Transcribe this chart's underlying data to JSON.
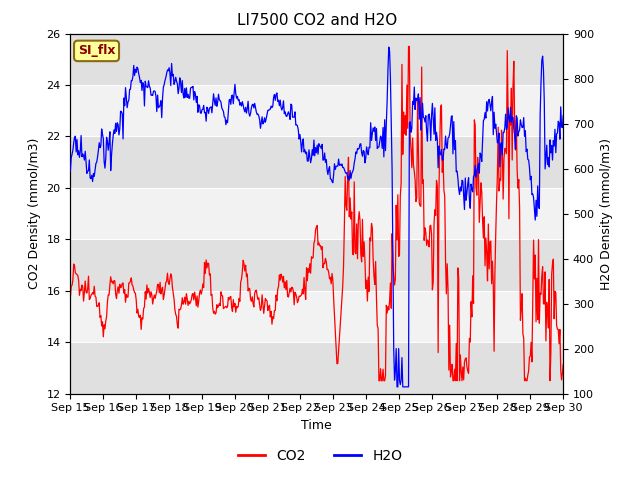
{
  "title": "LI7500 CO2 and H2O",
  "xlabel": "Time",
  "ylabel_left": "CO2 Density (mmol/m3)",
  "ylabel_right": "H2O Density (mmol/m3)",
  "ylim_left": [
    12,
    26
  ],
  "ylim_right": [
    100,
    900
  ],
  "yticks_left": [
    12,
    14,
    16,
    18,
    20,
    22,
    24,
    26
  ],
  "yticks_right": [
    100,
    200,
    300,
    400,
    500,
    600,
    700,
    800,
    900
  ],
  "x_tick_labels": [
    "Sep 15",
    "Sep 16",
    "Sep 17",
    "Sep 18",
    "Sep 19",
    "Sep 20",
    "Sep 21",
    "Sep 22",
    "Sep 23",
    "Sep 24",
    "Sep 25",
    "Sep 26",
    "Sep 27",
    "Sep 28",
    "Sep 29",
    "Sep 30"
  ],
  "co2_color": "#ff0000",
  "h2o_color": "#0000ff",
  "background_color": "#ffffff",
  "plot_bg_color": "#e8e8e8",
  "band_light": "#f2f2f2",
  "band_dark": "#e0e0e0",
  "grid_color": "#ffffff",
  "annotation_text": "SI_flx",
  "annotation_bg": "#ffff99",
  "annotation_border": "#8b6914",
  "legend_co2": "CO2",
  "legend_h2o": "H2O",
  "title_fontsize": 11,
  "axis_fontsize": 9,
  "tick_fontsize": 8,
  "linewidth": 0.9
}
